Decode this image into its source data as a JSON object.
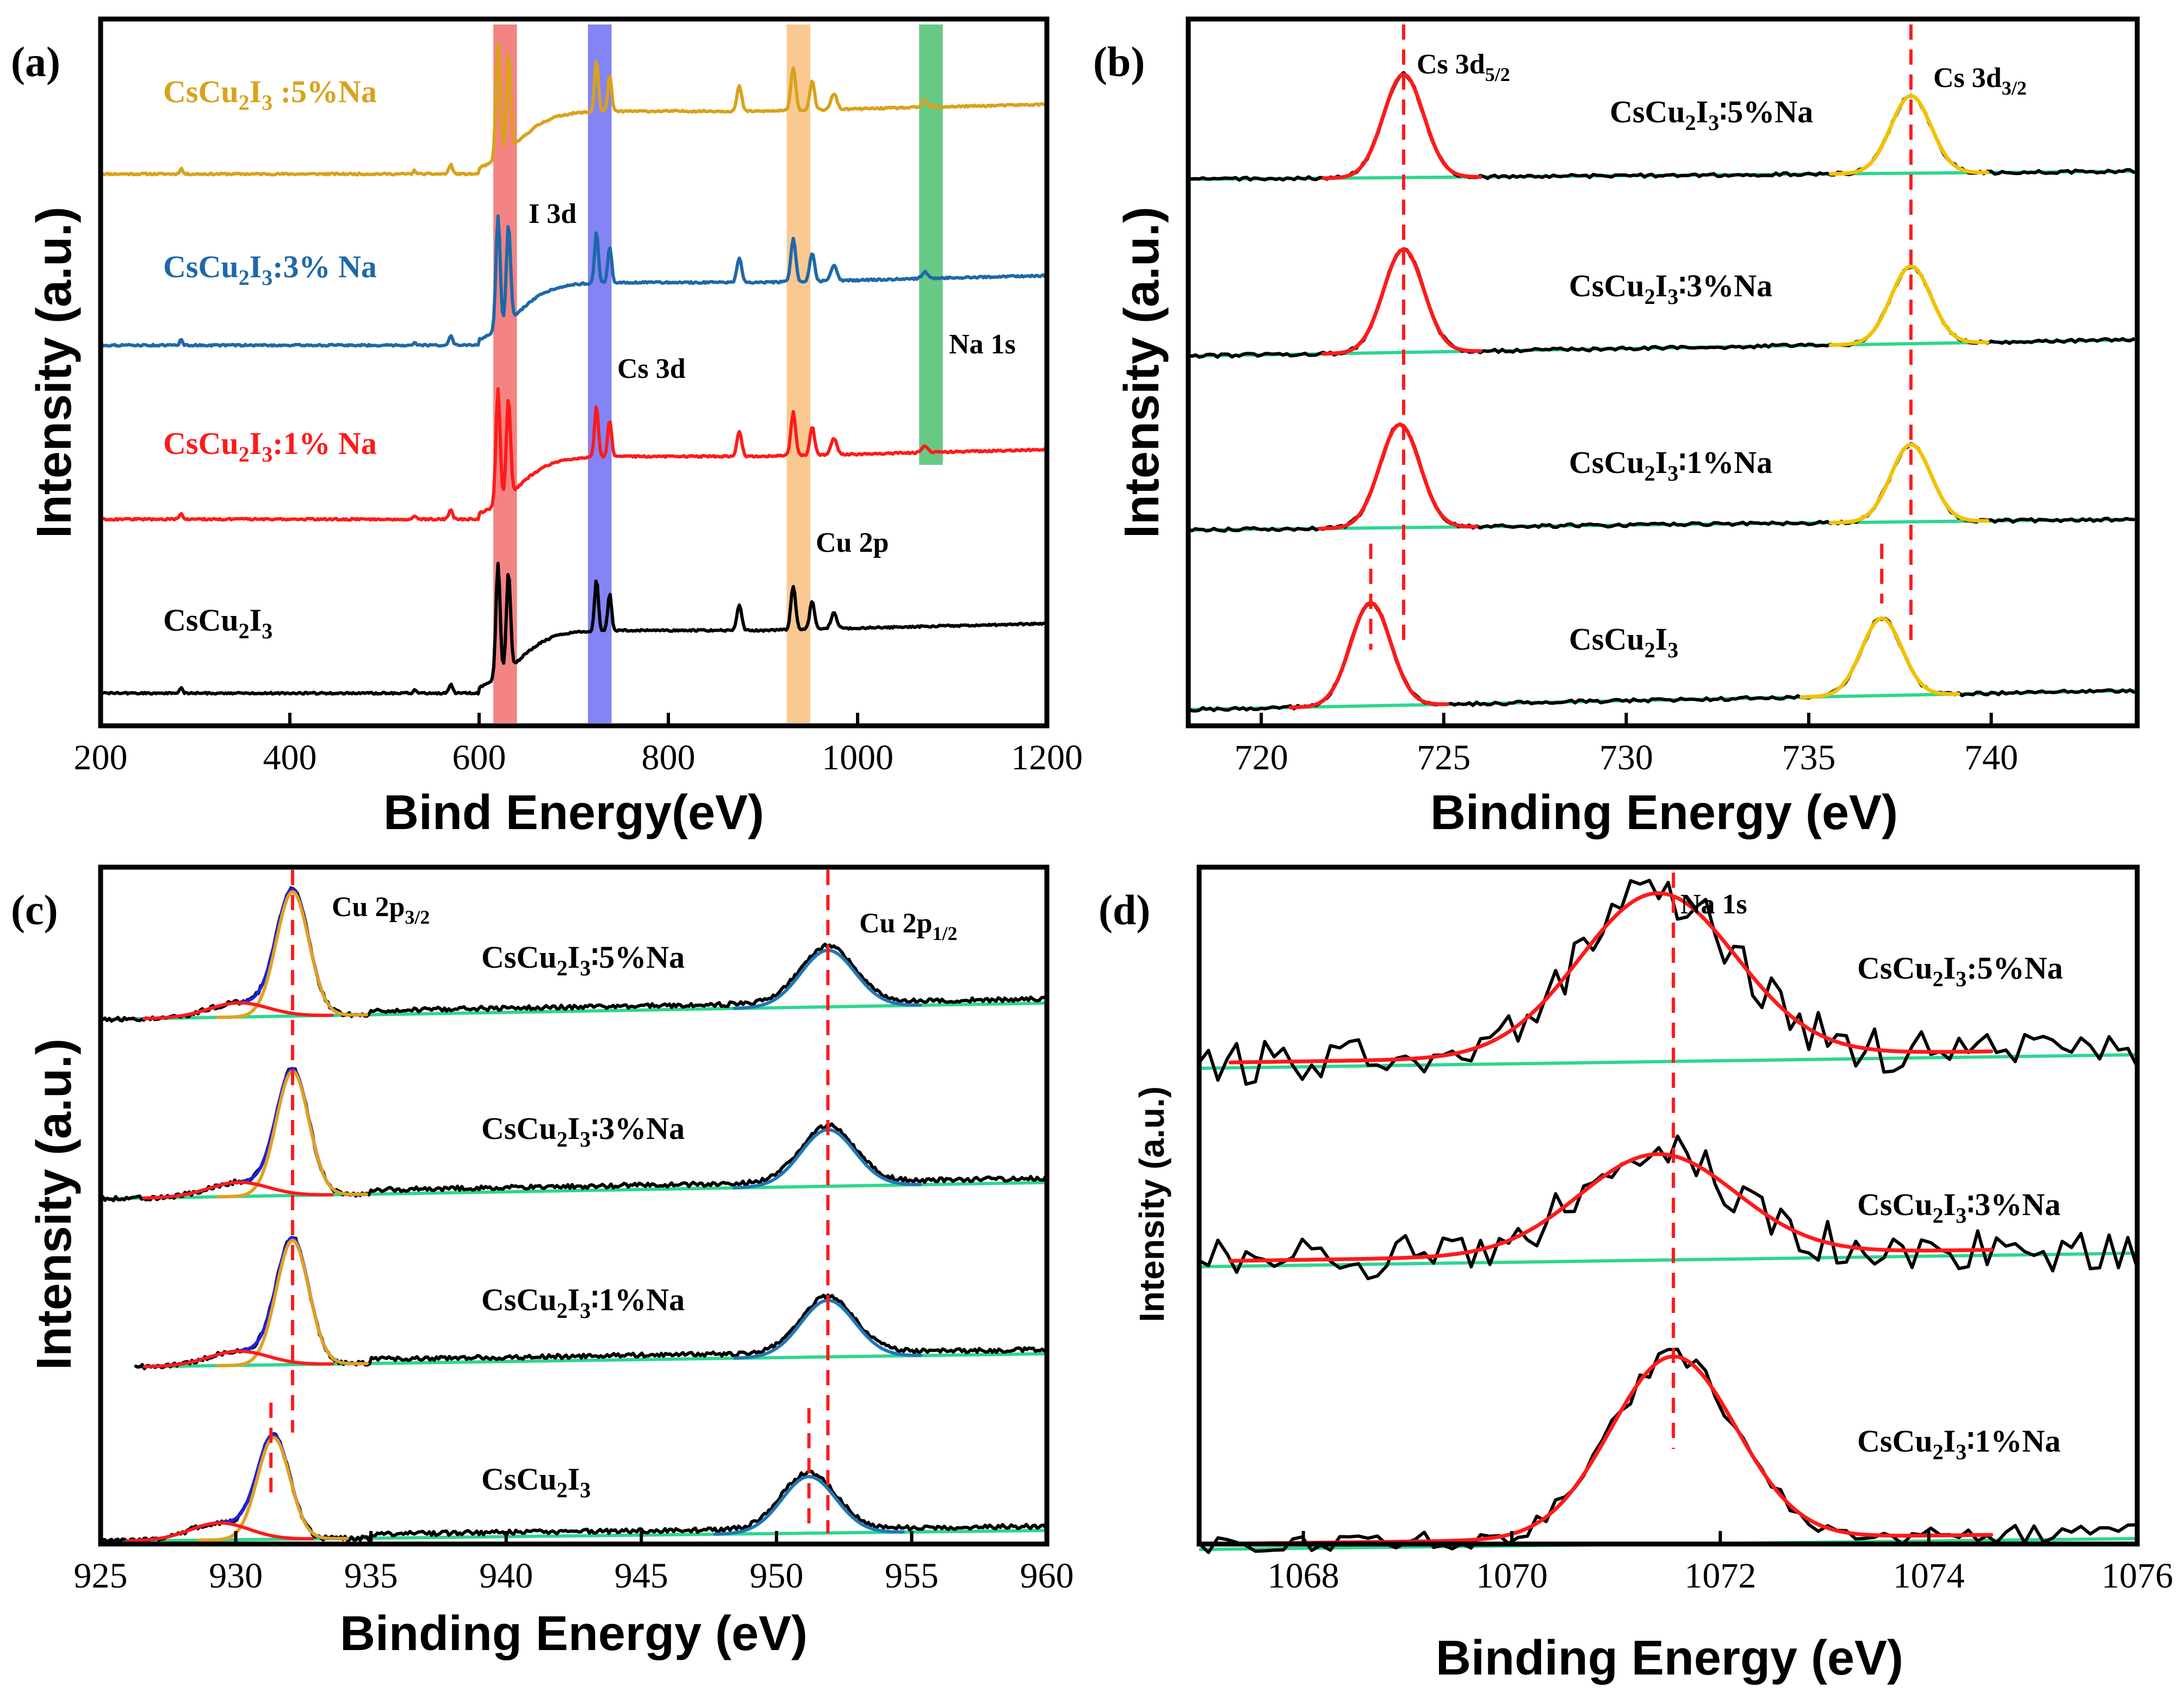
{
  "figure": {
    "colors": {
      "black": "#000000",
      "red": "#ff1a1a",
      "blue": "#1f68a8",
      "gold": "#d9a21b",
      "green_base": "#2ed68f",
      "yellow_fit": "#f2c200",
      "cu_fit": "#1f78b4",
      "blue_env": "#2020e0",
      "orange_fit": "#e0a020",
      "band_i": "#f26d6d",
      "band_cs": "#6e6ef2",
      "band_cu": "#f9c07f",
      "band_na": "#4cbf6f"
    }
  },
  "chart_data": [
    {
      "panel": "(a)",
      "type": "line",
      "xlabel": "Bind Energy(eV)",
      "ylabel": "Intensity (a.u.)",
      "xlim": [
        200,
        1200
      ],
      "xticks": [
        200,
        400,
        600,
        800,
        1000,
        1200
      ],
      "highlight_bands": [
        {
          "name": "I 3d",
          "x": [
            615,
            640
          ],
          "color": "#f26d6d"
        },
        {
          "name": "Cs 3d",
          "x": [
            715,
            740
          ],
          "color": "#6e6ef2"
        },
        {
          "name": "Cu 2p",
          "x": [
            925,
            950
          ],
          "color": "#f9c07f"
        },
        {
          "name": "Na 1s",
          "x": [
            1065,
            1090
          ],
          "color": "#4cbf6f"
        }
      ],
      "annotations": [
        "I 3d",
        "Cs 3d",
        "Cu 2p",
        "Na 1s"
      ],
      "series": [
        {
          "label_parts": [
            "CsCu",
            "2",
            "I",
            "3",
            " :5%Na"
          ],
          "color": "#d9a21b",
          "offset": 3,
          "end_level": 0.55
        },
        {
          "label_parts": [
            "CsCu",
            "2",
            "I",
            "3",
            ":3% Na"
          ],
          "color": "#1f68a8",
          "offset": 2,
          "end_level": 0.55
        },
        {
          "label_parts": [
            "CsCu",
            "2",
            "I",
            "3",
            ":1% Na"
          ],
          "color": "#ff1a1a",
          "offset": 1,
          "end_level": 0.55
        },
        {
          "label_parts": [
            "CsCu",
            "2",
            "I",
            "3",
            ""
          ],
          "color": "#000000",
          "offset": 0,
          "end_level": 0.55
        }
      ],
      "peaks": [
        {
          "x": 285,
          "h": 0.05,
          "w": 1.5
        },
        {
          "x": 532,
          "h": 0.03,
          "w": 1.5
        },
        {
          "x": 570,
          "h": 0.08,
          "w": 2
        },
        {
          "x": 620,
          "h": 1.0,
          "w": 2.2
        },
        {
          "x": 631,
          "h": 0.85,
          "w": 2.2
        },
        {
          "x": 724,
          "h": 0.45,
          "w": 2
        },
        {
          "x": 738,
          "h": 0.32,
          "w": 2
        },
        {
          "x": 875,
          "h": 0.22,
          "w": 2.5
        },
        {
          "x": 932,
          "h": 0.38,
          "w": 2.5
        },
        {
          "x": 952,
          "h": 0.25,
          "w": 2.5
        },
        {
          "x": 975,
          "h": 0.14,
          "w": 3
        },
        {
          "x": 1071,
          "h": 0.06,
          "w": 3
        }
      ]
    },
    {
      "panel": "(b)",
      "type": "line",
      "xlabel": "Binding Energy (eV)",
      "ylabel": "Intensity (a.u.)",
      "xlim": [
        718,
        744
      ],
      "xticks": [
        720,
        725,
        730,
        735,
        740
      ],
      "peak_labels": [
        "Cs 3d",
        "5/2",
        "Cs 3d",
        "3/2"
      ],
      "reference_lines": [
        723.9,
        737.8,
        723.0,
        737.0
      ],
      "series": [
        {
          "label_parts": [
            "CsCu",
            "2",
            "I",
            "3",
            "∶",
            "5%Na"
          ],
          "p1": 723.9,
          "p2": 737.8,
          "h1": 1.0,
          "h2": 0.75
        },
        {
          "label_parts": [
            "CsCu",
            "2",
            "I",
            "3",
            "∶",
            "3%Na"
          ],
          "p1": 723.9,
          "p2": 737.8,
          "h1": 1.0,
          "h2": 0.75
        },
        {
          "label_parts": [
            "CsCu",
            "2",
            "I",
            "3",
            "∶",
            "1%Na"
          ],
          "p1": 723.8,
          "p2": 737.8,
          "h1": 1.0,
          "h2": 0.75
        },
        {
          "label_parts": [
            "CsCu",
            "2",
            "I",
            "3",
            "",
            ""
          ],
          "p1": 723.0,
          "p2": 737.0,
          "h1": 1.0,
          "h2": 0.75
        }
      ]
    },
    {
      "panel": "(c)",
      "type": "line",
      "xlabel": "Binding Energy (eV)",
      "ylabel": "Intensity (a.u.)",
      "xlim": [
        925,
        960
      ],
      "xticks": [
        925,
        930,
        935,
        940,
        945,
        950,
        955,
        960
      ],
      "peak_labels": [
        "Cu 2p",
        "3/2",
        "Cu 2p",
        "1/2"
      ],
      "reference_lines": [
        932.1,
        951.9,
        931.3,
        951.2
      ],
      "series": [
        {
          "label_parts": [
            "CsCu",
            "2",
            "I",
            "3",
            "∶",
            "5%Na"
          ],
          "p1": 932.1,
          "p2": 951.9
        },
        {
          "label_parts": [
            "CsCu",
            "2",
            "I",
            "3",
            "∶",
            "3%Na"
          ],
          "p1": 932.1,
          "p2": 951.9
        },
        {
          "label_parts": [
            "CsCu",
            "2",
            "I",
            "3",
            "∶",
            "1%Na"
          ],
          "p1": 932.1,
          "p2": 951.9
        },
        {
          "label_parts": [
            "CsCu",
            "2",
            "I",
            "3",
            "",
            ""
          ],
          "p1": 931.4,
          "p2": 951.2
        }
      ]
    },
    {
      "panel": "(d)",
      "type": "line",
      "xlabel": "Binding Energy (eV)",
      "ylabel": "Intensity (a.u.)",
      "xlim": [
        1067,
        1076
      ],
      "xticks": [
        1068,
        1070,
        1072,
        1074,
        1076
      ],
      "peak_label": "Na 1s",
      "reference_line": 1071.55,
      "series": [
        {
          "label_parts": [
            "CsCu",
            "2",
            "I",
            "3",
            ":",
            "5%Na"
          ],
          "center": 1071.4,
          "width": 0.75,
          "noise": 0.14
        },
        {
          "label_parts": [
            "CsCu",
            "2",
            "I",
            "3",
            "∶",
            "3%Na"
          ],
          "center": 1071.4,
          "width": 0.75,
          "noise": 0.22
        },
        {
          "label_parts": [
            "CsCu",
            "2",
            "I",
            "3",
            "∶",
            "1%Na"
          ],
          "center": 1071.55,
          "width": 0.6,
          "noise": 0.05
        }
      ]
    }
  ]
}
